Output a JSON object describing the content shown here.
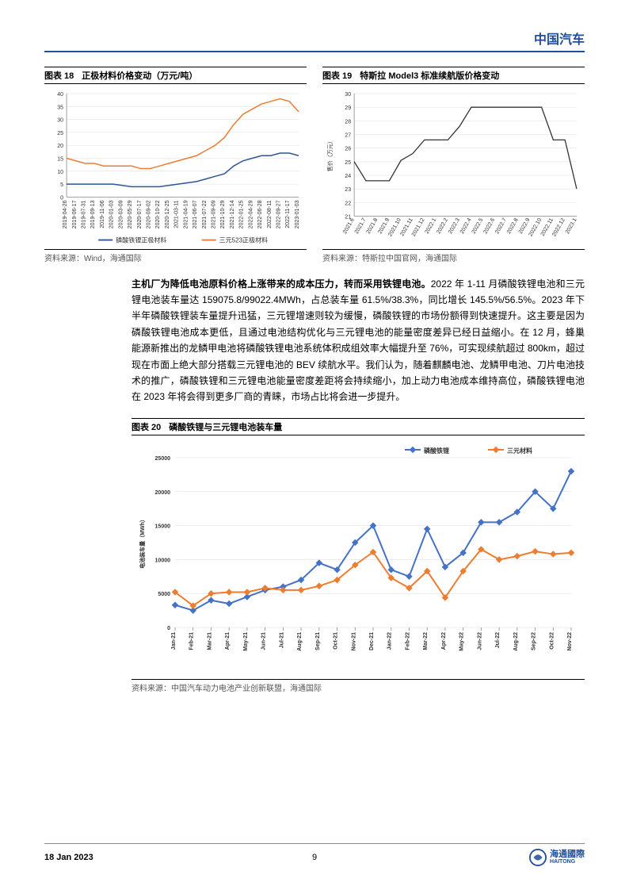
{
  "header": {
    "brand": "中国汽车"
  },
  "chart18": {
    "type": "line",
    "number": "图表 18",
    "title": "正极材料价格变动（万元/吨）",
    "source": "资料来源：Wind，海通国际",
    "ylim": [
      0,
      40
    ],
    "ytick_step": 5,
    "background_color": "#ffffff",
    "grid_color": "#e0e0e0",
    "axis_color": "#888888",
    "xlabels": [
      "2019-04-26",
      "2019-06-17",
      "2019-07-31",
      "2019-09-13",
      "2019-11-06",
      "2020-01-03",
      "2020-03-09",
      "2020-05-29",
      "2020-07-17",
      "2020-09-02",
      "2020-10-22",
      "2020-12-25",
      "2021-03-11",
      "2021-04-19",
      "2021-06-07",
      "2021-07-22",
      "2021-09-09",
      "2021-10-29",
      "2021-12-14",
      "2022-01-25",
      "2022-04-29",
      "2022-06-28",
      "2022-08-11",
      "2022-09-27",
      "2022-11-17",
      "2023-01-03"
    ],
    "series": [
      {
        "name": "磷酸铁锂正极材料",
        "color": "#2f5597",
        "values": [
          5,
          5,
          5,
          5,
          5,
          5,
          4.5,
          4,
          4,
          4,
          4,
          4.5,
          5,
          5.5,
          6,
          7,
          8,
          9,
          12,
          14,
          15,
          16,
          16,
          17,
          17,
          16
        ]
      },
      {
        "name": "三元523正极材料",
        "color": "#ed7d31",
        "values": [
          15,
          14,
          13,
          13,
          12,
          12,
          12,
          12,
          11,
          11,
          12,
          13,
          14,
          15,
          16,
          18,
          20,
          23,
          28,
          32,
          34,
          36,
          37,
          38,
          37,
          33
        ]
      }
    ]
  },
  "chart19": {
    "type": "line",
    "number": "图表 19",
    "title": "特斯拉 Model3 标准续航版价格变动",
    "source": "资料来源：特斯拉中国官网，海通国际",
    "ylabel": "售价（万元）",
    "ylim": [
      21,
      30
    ],
    "ytick_step": 1,
    "background_color": "#ffffff",
    "grid_color": "#e0e0e0",
    "axis_color": "#888888",
    "series_color": "#333333",
    "xlabels": [
      "2021.6",
      "2021.7",
      "2021.8",
      "2021.9",
      "2021.10",
      "2021.11",
      "2021.12",
      "2022.1",
      "2022.2",
      "2022.3",
      "2022.4",
      "2022.5",
      "2022.6",
      "2022.7",
      "2022.8",
      "2022.9",
      "2022.10",
      "2022.11",
      "2022.12",
      "2023.1"
    ],
    "values": [
      25,
      23.6,
      23.6,
      23.6,
      25.1,
      25.6,
      26.6,
      26.6,
      26.6,
      27.6,
      29,
      29,
      29,
      29,
      29,
      29,
      29,
      26.6,
      26.6,
      23
    ]
  },
  "body": {
    "lead": "主机厂为降低电池原料价格上涨带来的成本压力，转而采用铁锂电池。",
    "text": "2022 年 1-11 月磷酸铁锂电池和三元锂电池装车量达 159075.8/99022.4MWh，占总装车量 61.5%/38.3%，同比增长 145.5%/56.5%。2023 年下半年磷酸铁锂装车量提升迅猛，三元锂增速则较为缓慢，磷酸铁锂的市场份额得到快速提升。这主要是因为磷酸铁锂电池成本更低，且通过电池结构优化与三元锂电池的能量密度差异已经日益缩小。在 12 月，蜂巢能源新推出的龙鳞甲电池将磷酸铁锂电池系统体积成组效率大幅提升至 76%，可实现续航超过 800km，超过现在市面上绝大部分搭载三元锂电池的 BEV 续航水平。我们认为，随着麒麟电池、龙鳞甲电池、刀片电池技术的推广，磷酸铁锂和三元锂电池能量密度差距将会持续缩小，加上动力电池成本维持高位，磷酸铁锂电池在 2023 年将会得到更多厂商的青睐，市场占比将会进一步提升。"
  },
  "chart20": {
    "type": "line",
    "number": "图表 20",
    "title": "磷酸铁锂与三元锂电池装车量",
    "source": "资料来源：中国汽车动力电池产业创新联盟，海通国际",
    "ylabel": "电池装车量（MWh）",
    "ylim": [
      0,
      25000
    ],
    "ytick_step": 5000,
    "background_color": "#ffffff",
    "grid_color": "#d0d0d0",
    "xlabels": [
      "Jan-21",
      "Feb-21",
      "Mar-21",
      "Apr-21",
      "May-21",
      "Jun-21",
      "Jul-21",
      "Aug-21",
      "Sep-21",
      "Oct-21",
      "Nov-21",
      "Dec-21",
      "Jan-22",
      "Feb-22",
      "Mar-22",
      "Apr-22",
      "May-22",
      "Jun-22",
      "Jul-22",
      "Aug-22",
      "Sep-22",
      "Oct-22",
      "Nov-22"
    ],
    "series": [
      {
        "name": "磷酸铁锂",
        "color": "#4472c4",
        "marker": "diamond",
        "values": [
          3300,
          2500,
          4000,
          3500,
          4500,
          5500,
          6000,
          7000,
          9500,
          8500,
          12500,
          15000,
          8500,
          7500,
          14500,
          8900,
          11000,
          15500,
          15500,
          17000,
          20000,
          17500,
          23000
        ]
      },
      {
        "name": "三元材料",
        "color": "#ed7d31",
        "marker": "diamond",
        "values": [
          5200,
          3200,
          5000,
          5200,
          5200,
          5800,
          5500,
          5500,
          6100,
          7000,
          9200,
          11100,
          7300,
          5800,
          8300,
          4400,
          8300,
          11500,
          10000,
          10500,
          11200,
          10800,
          11000
        ]
      }
    ]
  },
  "footer": {
    "date": "18 Jan 2023",
    "page": "9",
    "logo_brand": "海通國際",
    "logo_sub": "HAITONG"
  }
}
